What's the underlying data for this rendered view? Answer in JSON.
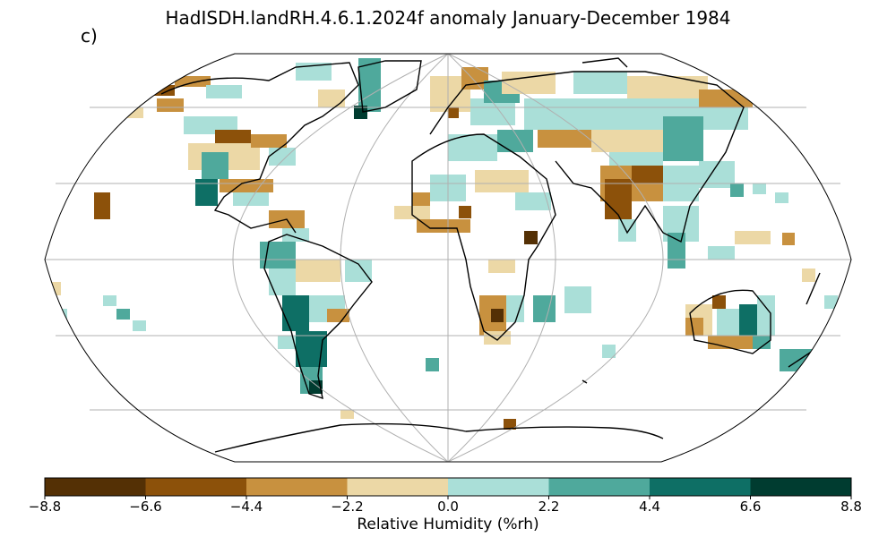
{
  "title": "HadISDH.landRH.4.6.1.2024f anomaly January-December 1984",
  "panel_label": "c)",
  "colorbar": {
    "label": "Relative Humidity (%rh)",
    "ticks": [
      "−8.8",
      "−6.6",
      "−4.4",
      "−2.2",
      "0.0",
      "2.2",
      "4.4",
      "6.6",
      "8.8"
    ],
    "colors": [
      "#543005",
      "#8c510a",
      "#c8913f",
      "#ecd8a6",
      "#aadfd8",
      "#4fa99c",
      "#0e6f65",
      "#003c30"
    ]
  },
  "map": {
    "projection": "Robinson",
    "graticule": true,
    "coastlines": true
  }
}
